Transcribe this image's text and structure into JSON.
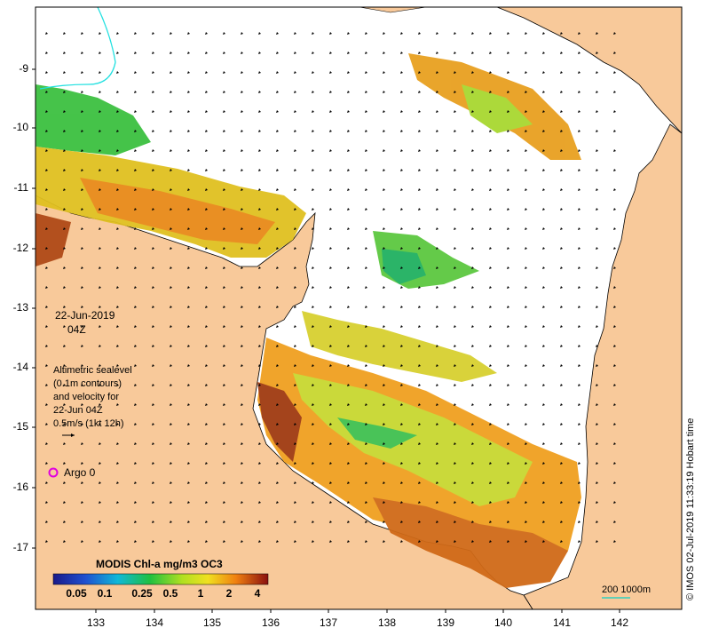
{
  "map": {
    "date": "22-Jun-2019",
    "time": "04Z",
    "description_lines": [
      "Altimetric sealevel",
      "(0.1m contours)",
      "and velocity for",
      "22-Jun 04Z",
      "0.5m/s (1kt 12h)"
    ],
    "argo_label": "Argo 0",
    "credit": "© IMOS 02-Jul-2019 11:33:19 Hobart time",
    "scale_label": "200  1000m"
  },
  "axes": {
    "y_ticks": [
      "-9",
      "-10",
      "-11",
      "-12",
      "-13",
      "-14",
      "-15",
      "-16",
      "-17"
    ],
    "x_ticks": [
      "133",
      "134",
      "135",
      "136",
      "137",
      "138",
      "139",
      "140",
      "141",
      "142"
    ]
  },
  "colorbar": {
    "title": "MODIS Chl-a mg/m3 OC3",
    "tick_labels": [
      "0.05",
      "0.1",
      "0.25",
      "0.5",
      "1",
      "2",
      "4"
    ]
  },
  "colors": {
    "land": "#f8c99a",
    "ocean": "#ffffff",
    "coast": "#000000",
    "argo_marker": "#e000e0",
    "scale_line": "#30d0c0"
  }
}
